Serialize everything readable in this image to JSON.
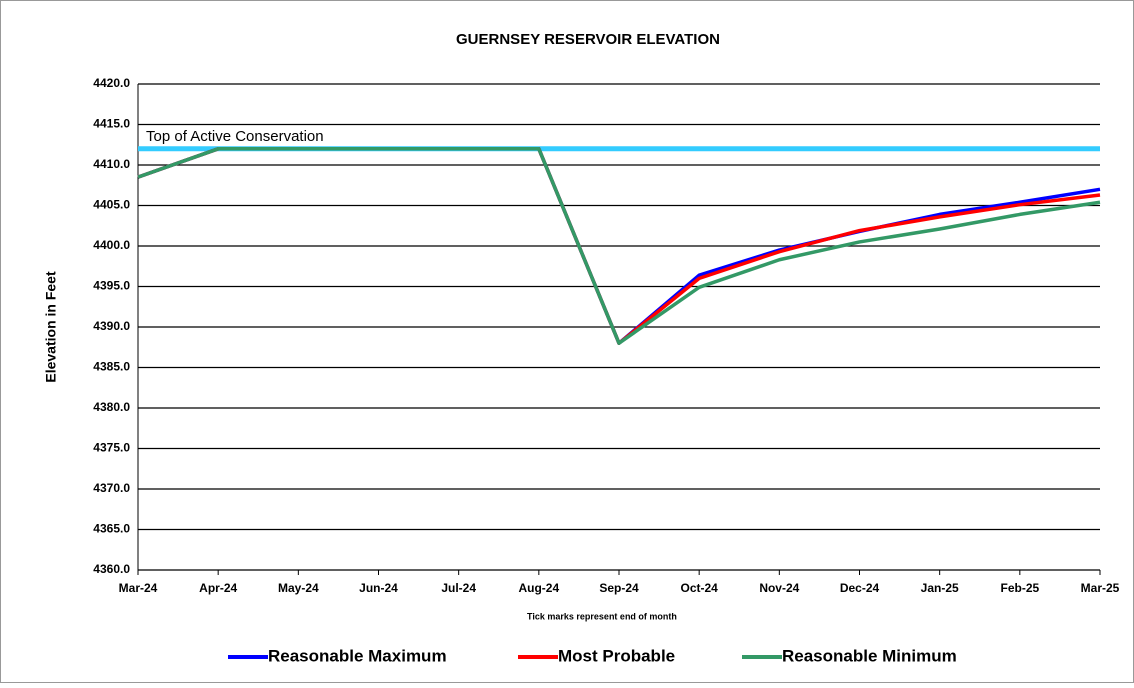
{
  "chart_data": {
    "type": "line",
    "title": "GUERNSEY RESERVOIR ELEVATION",
    "y_label": "Elevation in Feet",
    "x_label": "Tick marks represent end of month",
    "categories": [
      "Mar-24",
      "Apr-24",
      "May-24",
      "Jun-24",
      "Jul-24",
      "Aug-24",
      "Sep-24",
      "Oct-24",
      "Nov-24",
      "Dec-24",
      "Jan-25",
      "Feb-25",
      "Mar-25"
    ],
    "series": [
      {
        "name": "Reasonable Maximum",
        "color": "#0000ff",
        "values": [
          4408.5,
          4412,
          4412,
          4412,
          4412,
          4412,
          4388,
          4396.4,
          4399.5,
          4401.8,
          4403.9,
          4405.4,
          4407
        ]
      },
      {
        "name": "Most Probable",
        "color": "#ff0000",
        "values": [
          4408.5,
          4412,
          4412,
          4412,
          4412,
          4412,
          4388,
          4396,
          4399.3,
          4401.9,
          4403.6,
          4405.1,
          4406.3
        ]
      },
      {
        "name": "Reasonable Minimum",
        "color": "#339966",
        "values": [
          4408.5,
          4412,
          4412,
          4412,
          4412,
          4412,
          4388,
          4394.9,
          4398.3,
          4400.5,
          4402.1,
          4403.9,
          4405.4
        ]
      }
    ],
    "reference_line": {
      "label": "Top of Active Conservation",
      "value": 4412,
      "color": "#33ccff"
    },
    "ylim": [
      4360,
      4420
    ],
    "yticks": [
      {
        "value": 4360,
        "label": "4360.0"
      },
      {
        "value": 4365,
        "label": "4365.0"
      },
      {
        "value": 4370,
        "label": "4370.0"
      },
      {
        "value": 4375,
        "label": "4375.0"
      },
      {
        "value": 4380,
        "label": "4380.0"
      },
      {
        "value": 4385,
        "label": "4385.0"
      },
      {
        "value": 4390,
        "label": "4390.0"
      },
      {
        "value": 4395,
        "label": "4395.0"
      },
      {
        "value": 4400,
        "label": "4400.0"
      },
      {
        "value": 4405,
        "label": "4405.0"
      },
      {
        "value": 4410,
        "label": "4410.0"
      },
      {
        "value": 4415,
        "label": "4415.0"
      },
      {
        "value": 4420,
        "label": "4420.0"
      }
    ],
    "grid": true,
    "legend": "bottom"
  }
}
